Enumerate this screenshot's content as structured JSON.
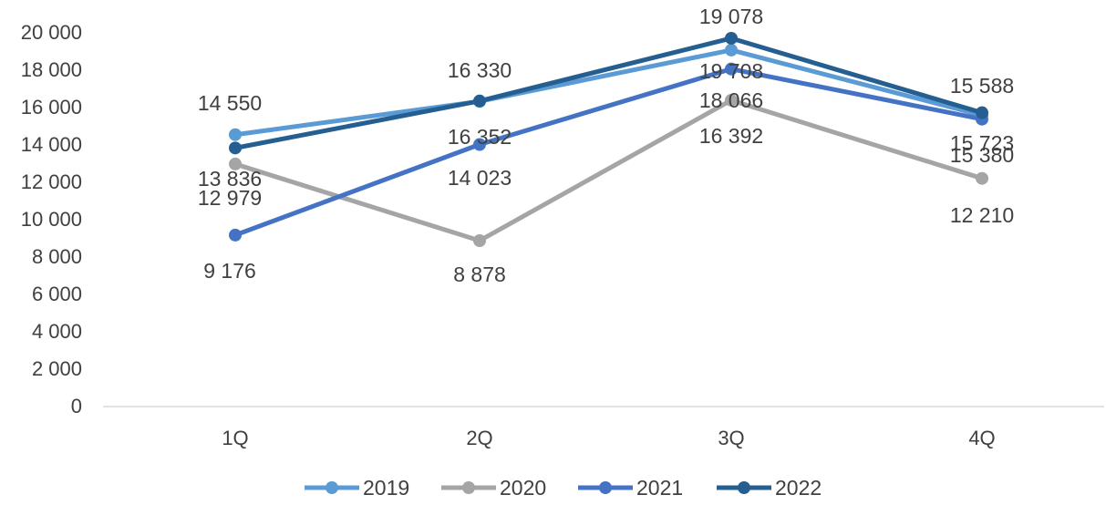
{
  "chart_data": {
    "type": "line",
    "categories": [
      "1Q",
      "2Q",
      "3Q",
      "4Q"
    ],
    "series": [
      {
        "name": "2019",
        "color": "#5B9BD5",
        "values": [
          14550,
          16330,
          19078,
          15588
        ]
      },
      {
        "name": "2020",
        "color": "#A5A5A5",
        "values": [
          12979,
          8878,
          16392,
          12210
        ]
      },
      {
        "name": "2021",
        "color": "#4472C4",
        "values": [
          9176,
          14023,
          18066,
          15380
        ]
      },
      {
        "name": "2022",
        "color": "#255E91",
        "values": [
          13836,
          16352,
          19708,
          15723
        ]
      }
    ],
    "data_labels": {
      "2019": [
        "14 550",
        "16 330",
        "19 078",
        "15 588"
      ],
      "2020": [
        "12 979",
        "8 878",
        "16 392",
        "12 210"
      ],
      "2021": [
        "9 176",
        "14 023",
        "18 066",
        "15 380"
      ],
      "2022": [
        "13 836",
        "16 352",
        "19 708",
        "15 723"
      ]
    },
    "y_ticks": [
      0,
      2000,
      4000,
      6000,
      8000,
      10000,
      12000,
      14000,
      16000,
      18000,
      20000
    ],
    "y_tick_labels": [
      "0",
      "2 000",
      "4 000",
      "6 000",
      "8 000",
      "10 000",
      "12 000",
      "14 000",
      "16 000",
      "18 000",
      "20 000"
    ],
    "ylim": [
      0,
      20000
    ],
    "title": "",
    "xlabel": "",
    "ylabel": "",
    "grid": false,
    "legend_position": "bottom"
  }
}
